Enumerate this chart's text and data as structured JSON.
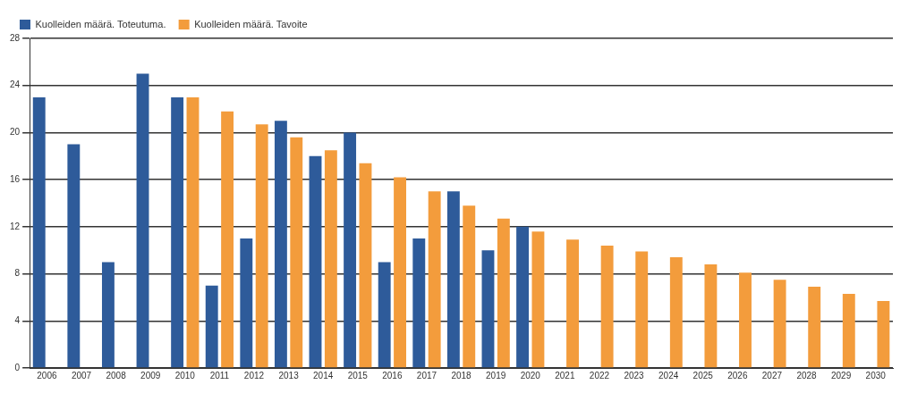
{
  "chart_data": {
    "type": "bar",
    "categories": [
      "2006",
      "2007",
      "2008",
      "2009",
      "2010",
      "2011",
      "2012",
      "2013",
      "2014",
      "2015",
      "2016",
      "2017",
      "2018",
      "2019",
      "2020",
      "2021",
      "2022",
      "2023",
      "2024",
      "2025",
      "2026",
      "2027",
      "2028",
      "2029",
      "2030"
    ],
    "series": [
      {
        "name": "Kuolleiden määrä. Toteutuma.",
        "color": "#2e5b9a",
        "values": [
          23,
          19,
          9,
          25,
          23,
          7,
          11,
          21,
          18,
          20,
          9,
          11,
          15,
          10,
          12,
          null,
          null,
          null,
          null,
          null,
          null,
          null,
          null,
          null,
          null
        ]
      },
      {
        "name": "Kuolleiden määrä. Tavoite",
        "color": "#f39c3c",
        "values": [
          null,
          null,
          null,
          null,
          23,
          21.8,
          20.7,
          19.6,
          18.5,
          17.4,
          16.2,
          15,
          13.8,
          12.7,
          11.6,
          10.9,
          10.4,
          9.9,
          9.4,
          8.8,
          8.1,
          7.5,
          6.9,
          6.3,
          5.7
        ]
      }
    ],
    "ylim": [
      0,
      28
    ],
    "yticks": [
      0,
      4,
      8,
      12,
      16,
      20,
      24,
      28
    ],
    "grid": "y",
    "legend": "top left"
  }
}
